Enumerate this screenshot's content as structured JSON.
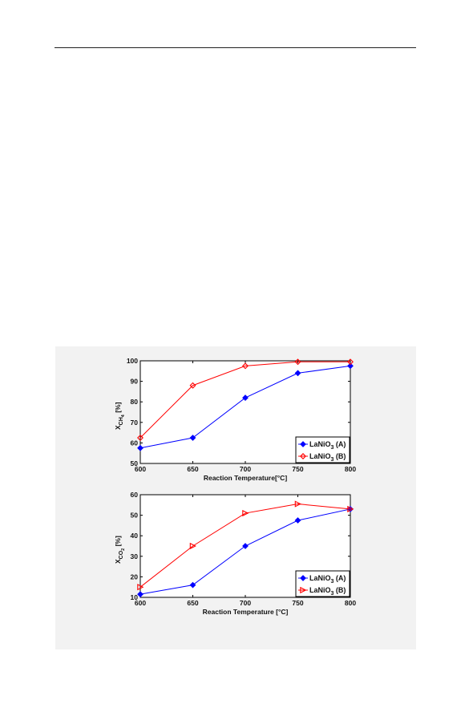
{
  "chart_data": [
    {
      "type": "line",
      "x": [
        600,
        650,
        700,
        750,
        800
      ],
      "xlabel": "Reaction Temperature[°C]",
      "ylabel_main": "X",
      "ylabel_sub": "CH",
      "ylabel_subsub": "4",
      "ylabel_unit": "[%]",
      "xlim": [
        600,
        800
      ],
      "ylim": [
        50,
        100
      ],
      "xticks": [
        "600",
        "650",
        "700",
        "750",
        "800"
      ],
      "yticks": [
        "50",
        "60",
        "70",
        "80",
        "90",
        "100"
      ],
      "legend_position": "bottom-right",
      "grid": false,
      "series": [
        {
          "name_main": "LaNiO",
          "name_sub": "3",
          "name_suffix": " (A)",
          "color": "#0000ff",
          "marker": "diamond",
          "values": [
            57.5,
            62.5,
            82,
            94,
            97.5
          ]
        },
        {
          "name_main": "LaNiO",
          "name_sub": "3",
          "name_suffix": " (B)",
          "color": "#ff0000",
          "marker": "open-diamond",
          "values": [
            62.5,
            88,
            97.5,
            99.5,
            99.5
          ]
        }
      ]
    },
    {
      "type": "line",
      "x": [
        600,
        650,
        700,
        750,
        800
      ],
      "xlabel": "Reaction Temperature [°C]",
      "ylabel_main": "X",
      "ylabel_sub": "CO",
      "ylabel_subsub": "2",
      "ylabel_unit": "[%]",
      "xlim": [
        600,
        800
      ],
      "ylim": [
        10,
        60
      ],
      "xticks": [
        "600",
        "650",
        "700",
        "750",
        "800"
      ],
      "yticks": [
        "10",
        "20",
        "30",
        "40",
        "50",
        "60"
      ],
      "legend_position": "bottom-right",
      "grid": false,
      "series": [
        {
          "name_main": "LaNiO",
          "name_sub": "3",
          "name_suffix": " (A)",
          "color": "#0000ff",
          "marker": "diamond",
          "values": [
            11.5,
            16,
            35,
            47.5,
            53
          ]
        },
        {
          "name_main": "LaNiO",
          "name_sub": "3",
          "name_suffix": " (B)",
          "color": "#ff0000",
          "marker": "open-triangle-right",
          "values": [
            15,
            35,
            51,
            55.5,
            53
          ]
        }
      ]
    }
  ]
}
